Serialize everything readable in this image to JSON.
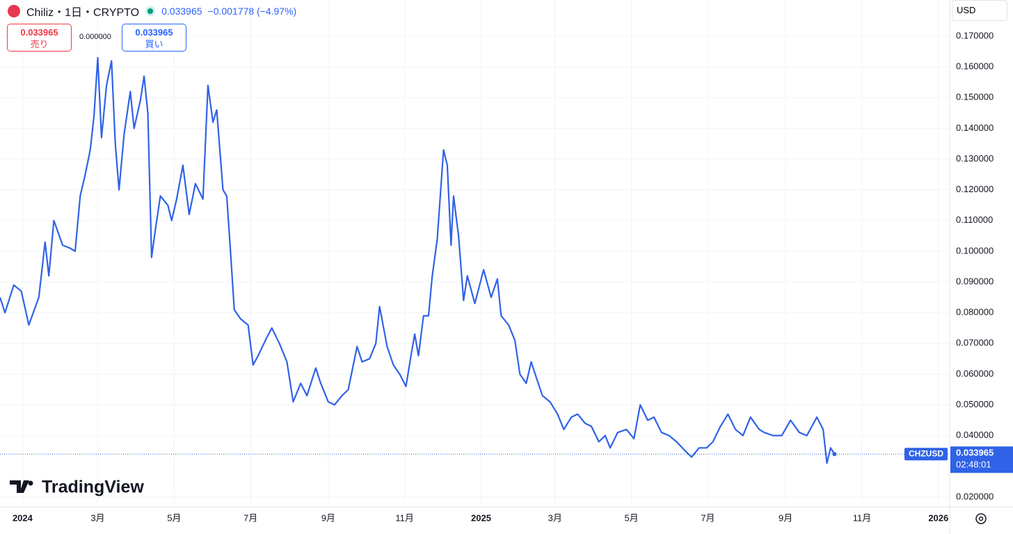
{
  "ui": {
    "symbol": "Chiliz・1日・CRYPTO",
    "price": "0.033965",
    "change": "−0.001778 (−4.97%)",
    "sell_price": "0.033965",
    "sell_label": "売り",
    "spread": "0.000000",
    "buy_price": "0.033965",
    "buy_label": "買い",
    "currency": "USD",
    "ticker_tag": "CHZUSD",
    "countdown": "02:48:01",
    "logo": "TradingView"
  },
  "chart_data": {
    "type": "line",
    "color": "#2f62e6",
    "grid": true,
    "last_price": 0.033965,
    "xlim": [
      "2023-12-14",
      "2026-01-10"
    ],
    "ylim": [
      0.0168,
      0.1818
    ],
    "xticks": [
      {
        "value": "2024-01-01",
        "label": "2024"
      },
      {
        "value": "2024-03-01",
        "label": "3月"
      },
      {
        "value": "2024-05-01",
        "label": "5月"
      },
      {
        "value": "2024-07-01",
        "label": "7月"
      },
      {
        "value": "2024-09-01",
        "label": "9月"
      },
      {
        "value": "2024-11-01",
        "label": "11月"
      },
      {
        "value": "2025-01-01",
        "label": "2025"
      },
      {
        "value": "2025-03-01",
        "label": "3月"
      },
      {
        "value": "2025-05-01",
        "label": "5月"
      },
      {
        "value": "2025-07-01",
        "label": "7月"
      },
      {
        "value": "2025-09-01",
        "label": "9月"
      },
      {
        "value": "2025-11-01",
        "label": "11月"
      },
      {
        "value": "2026-01-01",
        "label": "2026"
      }
    ],
    "yticks": [
      {
        "value": 0.02,
        "label": "0.020000"
      },
      {
        "value": 0.04,
        "label": "0.040000"
      },
      {
        "value": 0.05,
        "label": "0.050000"
      },
      {
        "value": 0.06,
        "label": "0.060000"
      },
      {
        "value": 0.07,
        "label": "0.070000"
      },
      {
        "value": 0.08,
        "label": "0.080000"
      },
      {
        "value": 0.09,
        "label": "0.090000"
      },
      {
        "value": 0.1,
        "label": "0.100000"
      },
      {
        "value": 0.11,
        "label": "0.110000"
      },
      {
        "value": 0.12,
        "label": "0.120000"
      },
      {
        "value": 0.13,
        "label": "0.130000"
      },
      {
        "value": 0.14,
        "label": "0.140000"
      },
      {
        "value": 0.15,
        "label": "0.150000"
      },
      {
        "value": 0.16,
        "label": "0.160000"
      },
      {
        "value": 0.17,
        "label": "0.170000"
      }
    ],
    "x": [
      "2023-12-14",
      "2023-12-18",
      "2023-12-25",
      "2023-12-31",
      "2024-01-06",
      "2024-01-14",
      "2024-01-19",
      "2024-01-22",
      "2024-01-26",
      "2024-02-02",
      "2024-02-08",
      "2024-02-12",
      "2024-02-16",
      "2024-02-20",
      "2024-02-24",
      "2024-02-27",
      "2024-03-01",
      "2024-03-04",
      "2024-03-08",
      "2024-03-12",
      "2024-03-15",
      "2024-03-18",
      "2024-03-22",
      "2024-03-27",
      "2024-03-30",
      "2024-04-04",
      "2024-04-07",
      "2024-04-10",
      "2024-04-13",
      "2024-04-16",
      "2024-04-20",
      "2024-04-26",
      "2024-04-29",
      "2024-05-03",
      "2024-05-08",
      "2024-05-13",
      "2024-05-18",
      "2024-05-24",
      "2024-05-28",
      "2024-06-01",
      "2024-06-04",
      "2024-06-09",
      "2024-06-12",
      "2024-06-15",
      "2024-06-18",
      "2024-06-23",
      "2024-06-29",
      "2024-07-03",
      "2024-07-07",
      "2024-07-14",
      "2024-07-18",
      "2024-07-24",
      "2024-07-30",
      "2024-08-04",
      "2024-08-10",
      "2024-08-15",
      "2024-08-22",
      "2024-08-26",
      "2024-09-01",
      "2024-09-06",
      "2024-09-12",
      "2024-09-17",
      "2024-09-24",
      "2024-09-28",
      "2024-10-04",
      "2024-10-09",
      "2024-10-12",
      "2024-10-18",
      "2024-10-23",
      "2024-10-28",
      "2024-11-02",
      "2024-11-06",
      "2024-11-09",
      "2024-11-12",
      "2024-11-16",
      "2024-11-20",
      "2024-11-23",
      "2024-11-27",
      "2024-12-02",
      "2024-12-05",
      "2024-12-08",
      "2024-12-10",
      "2024-12-14",
      "2024-12-18",
      "2024-12-21",
      "2024-12-27",
      "2025-01-03",
      "2025-01-09",
      "2025-01-14",
      "2025-01-17",
      "2025-01-23",
      "2025-01-28",
      "2025-02-01",
      "2025-02-06",
      "2025-02-10",
      "2025-02-14",
      "2025-02-19",
      "2025-02-25",
      "2025-03-03",
      "2025-03-08",
      "2025-03-14",
      "2025-03-19",
      "2025-03-25",
      "2025-03-30",
      "2025-04-05",
      "2025-04-10",
      "2025-04-14",
      "2025-04-20",
      "2025-04-27",
      "2025-05-03",
      "2025-05-08",
      "2025-05-14",
      "2025-05-19",
      "2025-05-25",
      "2025-05-31",
      "2025-06-06",
      "2025-06-13",
      "2025-06-18",
      "2025-06-24",
      "2025-06-30",
      "2025-07-05",
      "2025-07-11",
      "2025-07-17",
      "2025-07-23",
      "2025-07-29",
      "2025-08-04",
      "2025-08-11",
      "2025-08-15",
      "2025-08-22",
      "2025-08-29",
      "2025-09-05",
      "2025-09-12",
      "2025-09-18",
      "2025-09-26",
      "2025-10-01",
      "2025-10-04",
      "2025-10-07",
      "2025-10-10"
    ],
    "series": [
      {
        "name": "CHZUSD",
        "color": "#2f62e6",
        "values": [
          0.085,
          0.08,
          0.089,
          0.087,
          0.076,
          0.085,
          0.103,
          0.092,
          0.11,
          0.102,
          0.101,
          0.1,
          0.118,
          0.125,
          0.133,
          0.144,
          0.163,
          0.137,
          0.154,
          0.162,
          0.135,
          0.12,
          0.138,
          0.152,
          0.14,
          0.149,
          0.157,
          0.145,
          0.098,
          0.107,
          0.118,
          0.115,
          0.11,
          0.117,
          0.128,
          0.112,
          0.122,
          0.117,
          0.154,
          0.142,
          0.146,
          0.12,
          0.118,
          0.1,
          0.081,
          0.078,
          0.076,
          0.063,
          0.066,
          0.072,
          0.075,
          0.07,
          0.064,
          0.051,
          0.057,
          0.053,
          0.062,
          0.057,
          0.051,
          0.05,
          0.053,
          0.055,
          0.069,
          0.064,
          0.065,
          0.07,
          0.082,
          0.069,
          0.063,
          0.06,
          0.056,
          0.066,
          0.073,
          0.066,
          0.079,
          0.079,
          0.092,
          0.104,
          0.133,
          0.128,
          0.102,
          0.118,
          0.105,
          0.084,
          0.092,
          0.083,
          0.094,
          0.085,
          0.091,
          0.079,
          0.076,
          0.071,
          0.06,
          0.057,
          0.064,
          0.059,
          0.053,
          0.051,
          0.047,
          0.042,
          0.046,
          0.047,
          0.044,
          0.043,
          0.038,
          0.04,
          0.036,
          0.041,
          0.042,
          0.039,
          0.05,
          0.045,
          0.046,
          0.041,
          0.04,
          0.038,
          0.035,
          0.033,
          0.036,
          0.036,
          0.038,
          0.043,
          0.047,
          0.042,
          0.04,
          0.046,
          0.042,
          0.041,
          0.04,
          0.04,
          0.045,
          0.041,
          0.04,
          0.046,
          0.042,
          0.031,
          0.036,
          0.033965
        ]
      }
    ]
  }
}
